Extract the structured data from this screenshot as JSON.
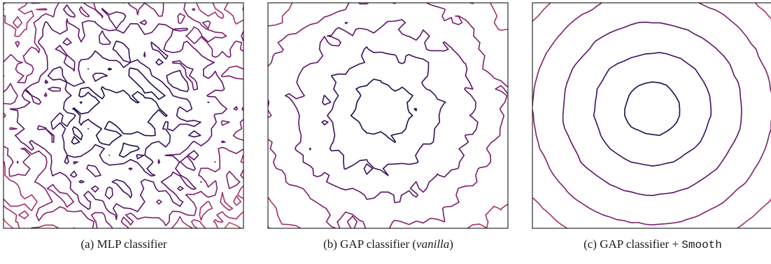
{
  "chart_data": [
    {
      "type": "contour",
      "panel": "a",
      "caption": {
        "prefix": "(a) MLP classifier",
        "emph": "",
        "suffix": "",
        "mono": ""
      },
      "axes": {
        "ticks": false,
        "frame": true
      },
      "levels": 7,
      "smoothness": "noisy",
      "colormap": [
        "#1e0c44",
        "#3a0f5c",
        "#5c1368",
        "#7e1e6c",
        "#a3316a",
        "#c74b55",
        "#e66a3c",
        "#f49a1f"
      ]
    },
    {
      "type": "contour",
      "panel": "b",
      "caption": {
        "prefix": "(b) GAP classifier (",
        "emph": "vanilla",
        "suffix": ")",
        "mono": ""
      },
      "axes": {
        "ticks": false,
        "frame": true
      },
      "levels": 7,
      "smoothness": "medium",
      "colormap": [
        "#1e0c44",
        "#3a0f5c",
        "#5c1368",
        "#7e1e6c",
        "#a3316a",
        "#c74b55",
        "#e66a3c",
        "#f49a1f"
      ]
    },
    {
      "type": "contour",
      "panel": "c",
      "caption": {
        "prefix": "(c) GAP classifier + ",
        "emph": "",
        "suffix": "",
        "mono": "Smooth"
      },
      "axes": {
        "ticks": false,
        "frame": true
      },
      "levels": 7,
      "smoothness": "smooth",
      "colormap": [
        "#1e0c44",
        "#3a0f5c",
        "#5c1368",
        "#7e1e6c",
        "#a3316a",
        "#c74b55",
        "#e66a3c",
        "#f49a1f"
      ]
    }
  ]
}
